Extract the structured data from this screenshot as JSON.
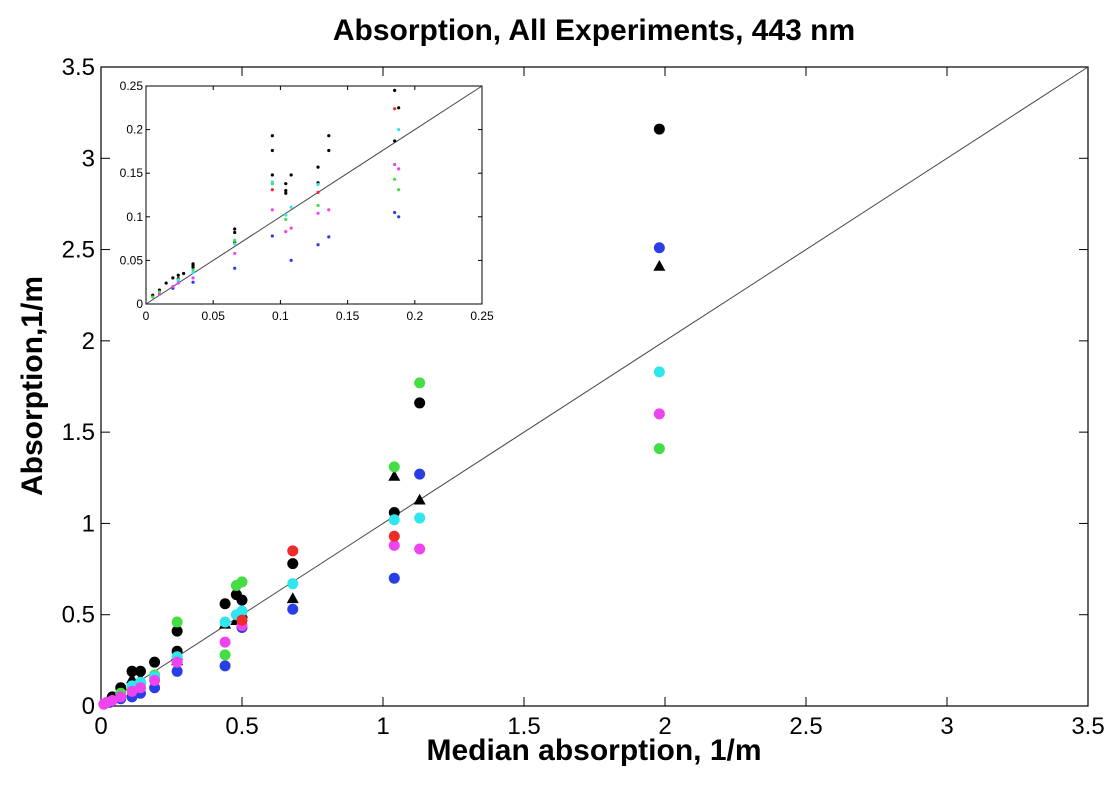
{
  "chart_data": [
    {
      "type": "scatter",
      "title": "Absorption, All Experiments, 443 nm",
      "xlabel": "Median absorption, 1/m",
      "ylabel": "Absorption,1/m",
      "xlim": [
        0,
        3.5
      ],
      "ylim": [
        0,
        3.5
      ],
      "xticks": [
        "0",
        "0.5",
        "1",
        "1.5",
        "2",
        "2.5",
        "3",
        "3.5"
      ],
      "yticks": [
        "0",
        "0.5",
        "1",
        "1.5",
        "2",
        "2.5",
        "3",
        "3.5"
      ],
      "reference_line": {
        "from": [
          0,
          0
        ],
        "to": [
          3.5,
          3.5
        ],
        "color": "#444444"
      },
      "grid": false,
      "series": [
        {
          "color": "#000000",
          "marker": "circle",
          "points": [
            [
              1.98,
              3.16
            ],
            [
              1.13,
              1.66
            ],
            [
              1.04,
              1.06
            ],
            [
              0.68,
              0.78
            ],
            [
              0.5,
              0.58
            ],
            [
              0.48,
              0.61
            ],
            [
              0.44,
              0.56
            ],
            [
              0.27,
              0.41
            ],
            [
              0.27,
              0.3
            ],
            [
              0.19,
              0.24
            ],
            [
              0.14,
              0.19
            ],
            [
              0.11,
              0.19
            ],
            [
              0.07,
              0.1
            ],
            [
              0.04,
              0.05
            ]
          ]
        },
        {
          "color": "#000000",
          "marker": "triangle",
          "points": [
            [
              1.98,
              2.41
            ],
            [
              1.13,
              1.13
            ],
            [
              1.04,
              1.26
            ],
            [
              0.68,
              0.59
            ],
            [
              0.5,
              0.51
            ],
            [
              0.48,
              0.47
            ],
            [
              0.44,
              0.45
            ],
            [
              0.27,
              0.25
            ],
            [
              0.27,
              0.28
            ],
            [
              0.14,
              0.15
            ],
            [
              0.11,
              0.15
            ],
            [
              0.07,
              0.08
            ]
          ]
        },
        {
          "color": "#2a3ee6",
          "marker": "circle",
          "points": [
            [
              1.98,
              2.51
            ],
            [
              1.13,
              1.27
            ],
            [
              1.04,
              0.7
            ],
            [
              0.68,
              0.53
            ],
            [
              0.5,
              0.43
            ],
            [
              0.44,
              0.22
            ],
            [
              0.27,
              0.19
            ],
            [
              0.19,
              0.1
            ],
            [
              0.14,
              0.07
            ],
            [
              0.11,
              0.05
            ],
            [
              0.07,
              0.04
            ],
            [
              0.03,
              0.02
            ]
          ]
        },
        {
          "color": "#44dd44",
          "marker": "circle",
          "points": [
            [
              1.98,
              1.41
            ],
            [
              1.13,
              1.77
            ],
            [
              1.04,
              1.31
            ],
            [
              0.5,
              0.68
            ],
            [
              0.48,
              0.66
            ],
            [
              0.44,
              0.28
            ],
            [
              0.27,
              0.46
            ],
            [
              0.19,
              0.17
            ],
            [
              0.14,
              0.12
            ],
            [
              0.11,
              0.09
            ],
            [
              0.07,
              0.07
            ]
          ]
        },
        {
          "color": "#2ee6ee",
          "marker": "circle",
          "points": [
            [
              1.98,
              1.83
            ],
            [
              1.13,
              1.03
            ],
            [
              1.04,
              1.02
            ],
            [
              0.68,
              0.67
            ],
            [
              0.5,
              0.52
            ],
            [
              0.48,
              0.5
            ],
            [
              0.44,
              0.46
            ],
            [
              0.27,
              0.27
            ],
            [
              0.19,
              0.16
            ],
            [
              0.14,
              0.13
            ],
            [
              0.11,
              0.11
            ]
          ]
        },
        {
          "color": "#ee44ee",
          "marker": "circle",
          "points": [
            [
              1.98,
              1.6
            ],
            [
              1.13,
              0.86
            ],
            [
              1.04,
              0.88
            ],
            [
              0.5,
              0.44
            ],
            [
              0.44,
              0.35
            ],
            [
              0.27,
              0.24
            ],
            [
              0.19,
              0.14
            ],
            [
              0.14,
              0.1
            ],
            [
              0.11,
              0.08
            ],
            [
              0.07,
              0.05
            ],
            [
              0.04,
              0.03
            ],
            [
              0.02,
              0.02
            ],
            [
              0.01,
              0.01
            ]
          ]
        },
        {
          "color": "#ee2a2a",
          "marker": "circle",
          "points": [
            [
              1.04,
              0.93
            ],
            [
              0.68,
              0.85
            ],
            [
              0.5,
              0.47
            ]
          ]
        }
      ]
    },
    {
      "type": "scatter",
      "title": "",
      "xlim": [
        0,
        0.25
      ],
      "ylim": [
        0,
        0.25
      ],
      "xticks": [
        "0",
        "0.05",
        "0.1",
        "0.15",
        "0.2",
        "0.25"
      ],
      "yticks": [
        "0",
        "0.05",
        "0.1",
        "0.15",
        "0.2",
        "0.25"
      ],
      "reference_line": {
        "from": [
          0,
          0
        ],
        "to": [
          0.25,
          0.25
        ],
        "color": "#444444"
      },
      "grid": false,
      "series": [
        {
          "color": "#000000",
          "marker": "dot",
          "points": [
            [
              0.185,
              0.245
            ],
            [
              0.185,
              0.187
            ],
            [
              0.136,
              0.193
            ],
            [
              0.128,
              0.157
            ],
            [
              0.108,
              0.148
            ],
            [
              0.104,
              0.138
            ],
            [
              0.104,
              0.13
            ],
            [
              0.094,
              0.193
            ],
            [
              0.094,
              0.176
            ],
            [
              0.066,
              0.086
            ],
            [
              0.066,
              0.082
            ],
            [
              0.035,
              0.046
            ],
            [
              0.035,
              0.042
            ],
            [
              0.028,
              0.035
            ],
            [
              0.024,
              0.033
            ],
            [
              0.02,
              0.03
            ],
            [
              0.015,
              0.024
            ],
            [
              0.01,
              0.016
            ],
            [
              0.005,
              0.01
            ]
          ]
        },
        {
          "color": "#000000",
          "marker": "dot",
          "points": [
            [
              0.188,
              0.225
            ],
            [
              0.136,
              0.176
            ],
            [
              0.128,
              0.139
            ],
            [
              0.104,
              0.127
            ],
            [
              0.094,
              0.148
            ],
            [
              0.066,
              0.071
            ],
            [
              0.035,
              0.044
            ],
            [
              0.024,
              0.029
            ]
          ]
        },
        {
          "color": "#2a3ee6",
          "marker": "dot",
          "points": [
            [
              0.188,
              0.1
            ],
            [
              0.185,
              0.105
            ],
            [
              0.136,
              0.077
            ],
            [
              0.128,
              0.068
            ],
            [
              0.108,
              0.05
            ],
            [
              0.094,
              0.078
            ],
            [
              0.066,
              0.041
            ],
            [
              0.035,
              0.025
            ],
            [
              0.02,
              0.018
            ]
          ]
        },
        {
          "color": "#44dd44",
          "marker": "dot",
          "points": [
            [
              0.185,
              0.143
            ],
            [
              0.188,
              0.131
            ],
            [
              0.128,
              0.113
            ],
            [
              0.104,
              0.097
            ],
            [
              0.094,
              0.138
            ],
            [
              0.066,
              0.073
            ],
            [
              0.035,
              0.039
            ],
            [
              0.024,
              0.028
            ],
            [
              0.01,
              0.014
            ],
            [
              0.005,
              0.008
            ]
          ]
        },
        {
          "color": "#2ee6ee",
          "marker": "dot",
          "points": [
            [
              0.188,
              0.2
            ],
            [
              0.128,
              0.137
            ],
            [
              0.108,
              0.111
            ],
            [
              0.104,
              0.102
            ],
            [
              0.094,
              0.14
            ],
            [
              0.066,
              0.069
            ],
            [
              0.035,
              0.036
            ],
            [
              0.024,
              0.027
            ]
          ]
        },
        {
          "color": "#ee44ee",
          "marker": "dot",
          "points": [
            [
              0.185,
              0.16
            ],
            [
              0.188,
              0.155
            ],
            [
              0.136,
              0.108
            ],
            [
              0.128,
              0.104
            ],
            [
              0.108,
              0.087
            ],
            [
              0.104,
              0.083
            ],
            [
              0.094,
              0.108
            ],
            [
              0.066,
              0.058
            ],
            [
              0.035,
              0.03
            ],
            [
              0.024,
              0.024
            ],
            [
              0.02,
              0.02
            ],
            [
              0.01,
              0.011
            ]
          ]
        },
        {
          "color": "#ee2a2a",
          "marker": "dot",
          "points": [
            [
              0.185,
              0.224
            ],
            [
              0.128,
              0.128
            ],
            [
              0.094,
              0.131
            ]
          ]
        }
      ]
    }
  ]
}
